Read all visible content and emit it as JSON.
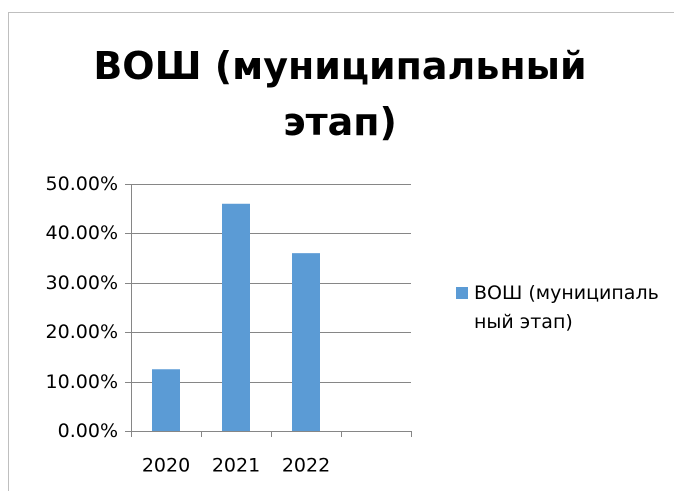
{
  "chart_data": {
    "type": "bar",
    "title": "ВОШ (муниципальный этап)",
    "categories": [
      "2020",
      "2021",
      "2022",
      null
    ],
    "series": [
      {
        "name": "ВОШ (муниципальный этап)",
        "color": "#5b9bd5",
        "values": [
          12.5,
          46,
          36,
          null
        ]
      }
    ],
    "ylim": [
      0,
      50
    ],
    "yticks": [
      {
        "value": 0,
        "label": "0.00%"
      },
      {
        "value": 10,
        "label": "10.00%"
      },
      {
        "value": 20,
        "label": "20.00%"
      },
      {
        "value": 30,
        "label": "30.00%"
      },
      {
        "value": 40,
        "label": "40.00%"
      },
      {
        "value": 50,
        "label": "50.00%"
      }
    ],
    "grid": true,
    "legend": "right"
  }
}
